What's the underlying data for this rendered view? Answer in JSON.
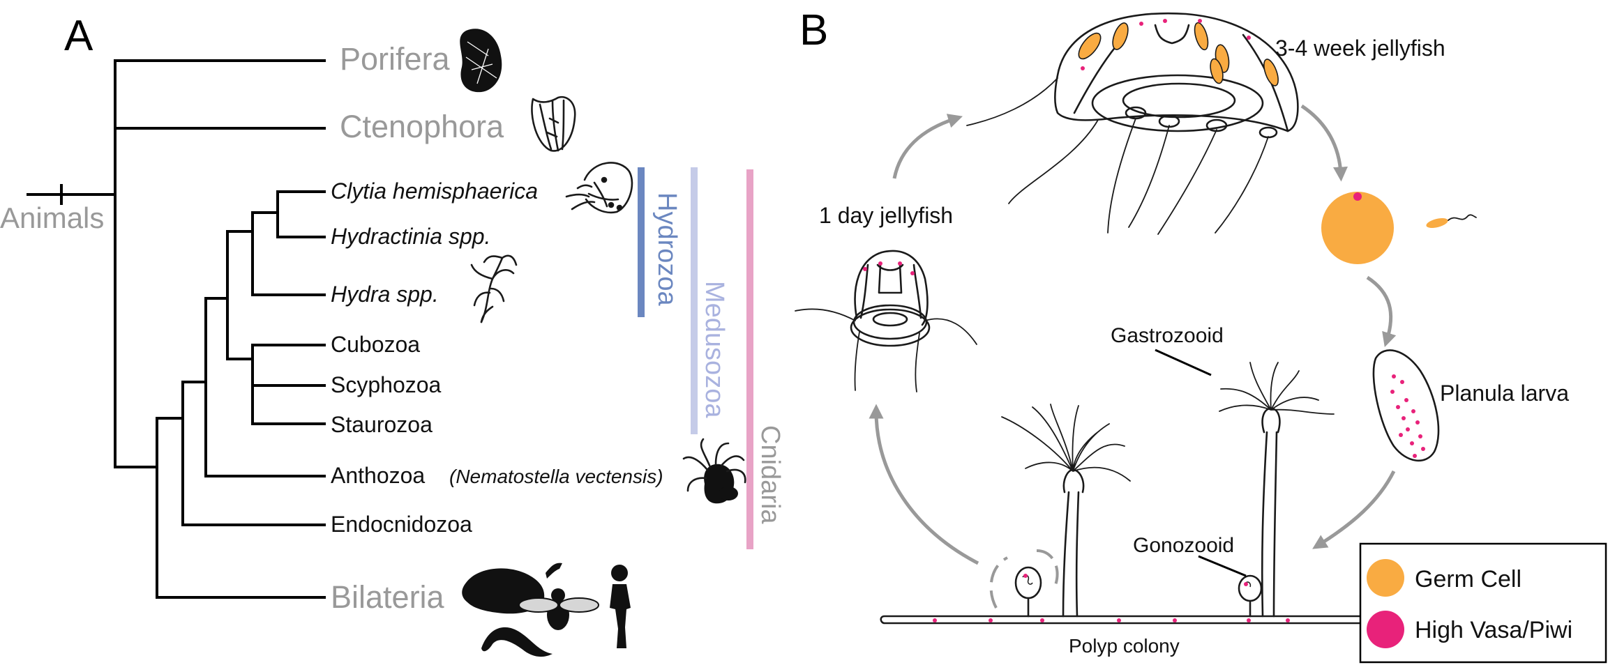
{
  "panels": {
    "a": "A",
    "b": "B"
  },
  "tree": {
    "root": "Animals",
    "porifera": "Porifera",
    "ctenophora": "Ctenophora",
    "clytia": "Clytia hemisphaerica",
    "hydractinia": "Hydractinia spp.",
    "hydra": "Hydra spp.",
    "cubozoa": "Cubozoa",
    "scyphozoa": "Scyphozoa",
    "staurozoa": "Staurozoa",
    "anthozoa": "Anthozoa",
    "nematostella": "(Nematostella vectensis)",
    "endocnidozoa": "Endocnidozoa",
    "bilateria": "Bilateria"
  },
  "clades": {
    "hydrozoa": {
      "label": "Hydrozoa",
      "color": "#6b87c0"
    },
    "medusozoa": {
      "label": "Medusozoa",
      "color": "#c5cbe8"
    },
    "cnidaria": {
      "label": "Cnidaria",
      "color": "#e8a3c6"
    }
  },
  "lifecycle": {
    "jelly_adult": "3-4 week jellyfish",
    "jelly_young": "1 day jellyfish",
    "planula": "Planula larva",
    "gastrozooid": "Gastrozooid",
    "gonozooid": "Gonozooid",
    "polyp": "Polyp colony"
  },
  "legend": {
    "germ": {
      "label": "Germ Cell",
      "color": "#f9ab42"
    },
    "vasa": {
      "label": "High Vasa/Piwi",
      "color": "#e8227a"
    }
  },
  "arrow_color": "#999999"
}
